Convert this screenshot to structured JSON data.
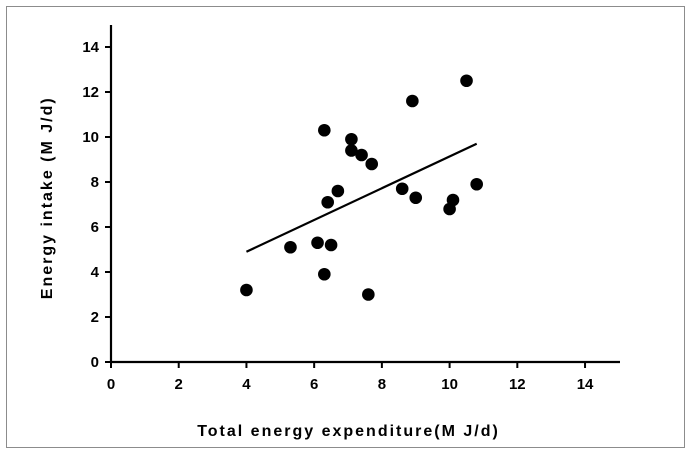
{
  "chart_data": {
    "type": "scatter",
    "title": "",
    "xlabel": "Total energy expenditure(M J/d)",
    "ylabel": "Energy intake (M J/d)",
    "xlim": [
      0,
      15
    ],
    "ylim": [
      0,
      15
    ],
    "xticks": [
      0,
      2,
      4,
      6,
      8,
      10,
      12,
      14
    ],
    "yticks": [
      0,
      2,
      4,
      6,
      8,
      10,
      12,
      14
    ],
    "grid": false,
    "legend": "none",
    "marker_color": "#000000",
    "points": [
      {
        "x": 4.0,
        "y": 3.2
      },
      {
        "x": 5.3,
        "y": 5.1
      },
      {
        "x": 6.1,
        "y": 5.3
      },
      {
        "x": 6.3,
        "y": 3.9
      },
      {
        "x": 6.3,
        "y": 10.3
      },
      {
        "x": 6.4,
        "y": 7.1
      },
      {
        "x": 6.5,
        "y": 5.2
      },
      {
        "x": 6.7,
        "y": 7.6
      },
      {
        "x": 7.1,
        "y": 9.4
      },
      {
        "x": 7.1,
        "y": 9.9
      },
      {
        "x": 7.4,
        "y": 9.2
      },
      {
        "x": 7.6,
        "y": 3.0
      },
      {
        "x": 7.7,
        "y": 8.8
      },
      {
        "x": 8.6,
        "y": 7.7
      },
      {
        "x": 8.9,
        "y": 11.6
      },
      {
        "x": 9.0,
        "y": 7.3
      },
      {
        "x": 10.0,
        "y": 6.8
      },
      {
        "x": 10.1,
        "y": 7.2
      },
      {
        "x": 10.5,
        "y": 12.5
      },
      {
        "x": 10.8,
        "y": 7.9
      }
    ],
    "trendline": {
      "x1": 4.0,
      "y1": 4.9,
      "x2": 10.8,
      "y2": 9.7
    }
  }
}
